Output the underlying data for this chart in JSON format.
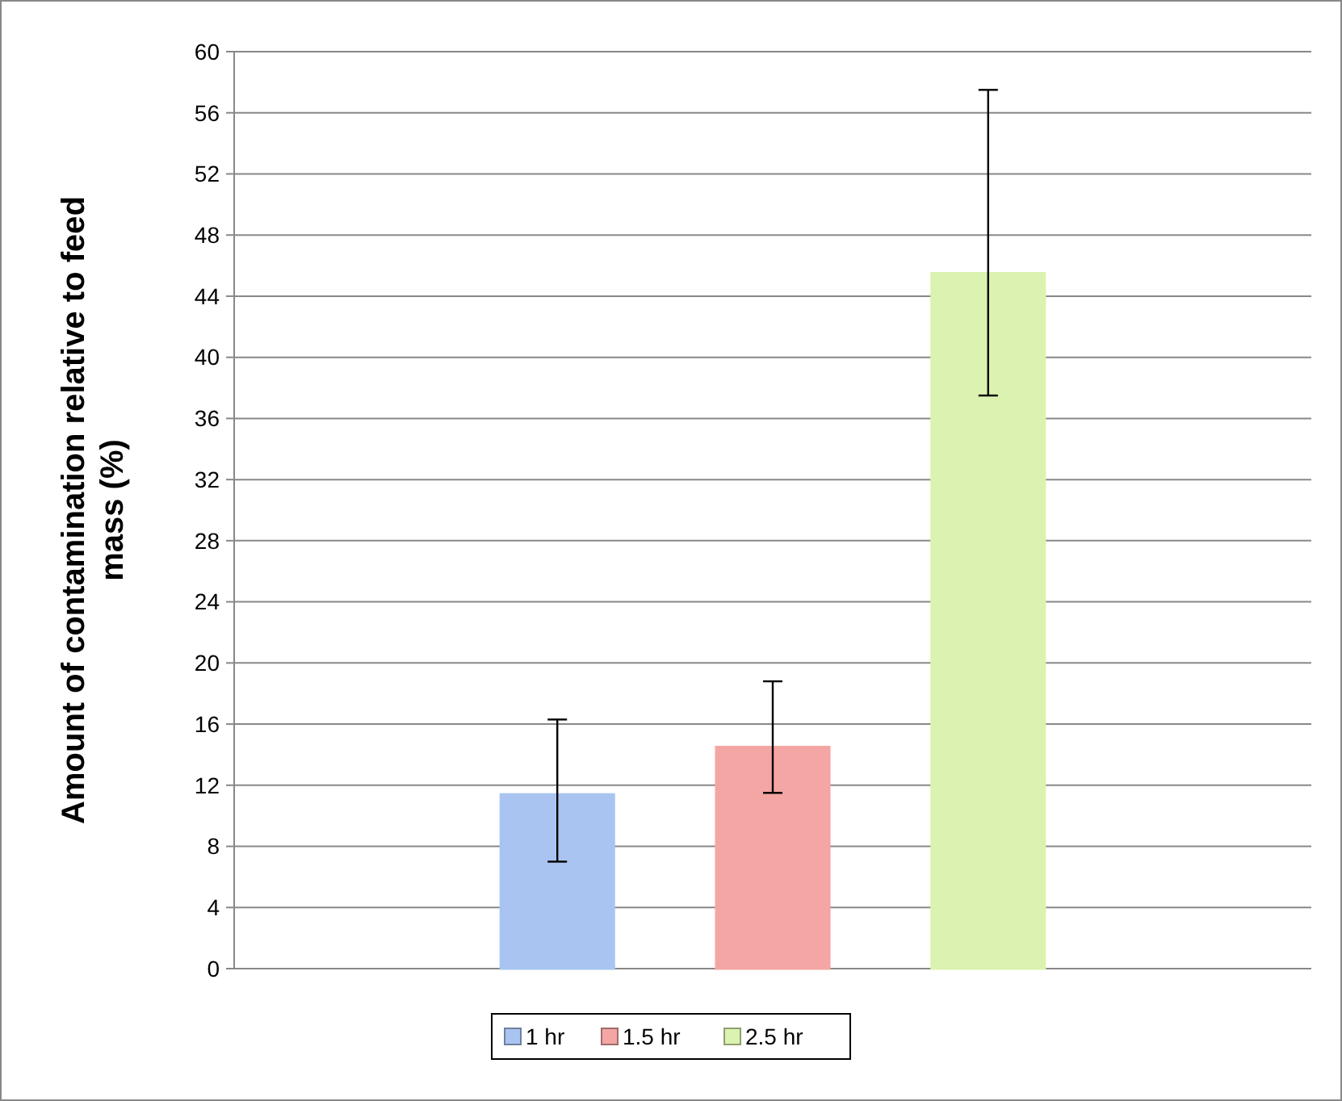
{
  "chart_data": {
    "type": "bar",
    "ylabel": "Amount of contamination relative to feed mass (%)",
    "categories": [
      null
    ],
    "series": [
      {
        "name": "1 hr",
        "color": "#a9c4f0",
        "values": [
          11.4
        ],
        "errors": [
          [
            7.0,
            16.3
          ]
        ]
      },
      {
        "name": "1.5 hr",
        "color": "#f4a6a4",
        "values": [
          14.5
        ],
        "errors": [
          [
            11.5,
            18.8
          ]
        ]
      },
      {
        "name": "2.5 hr",
        "color": "#dcf2b0",
        "values": [
          45.5
        ],
        "errors": [
          [
            37.5,
            57.5
          ]
        ]
      }
    ],
    "ylim": [
      0,
      60
    ],
    "yticks": [
      0,
      4,
      8,
      12,
      16,
      20,
      24,
      28,
      32,
      36,
      40,
      44,
      48,
      52,
      56,
      60
    ],
    "grid": "y",
    "legend": "bottom"
  }
}
